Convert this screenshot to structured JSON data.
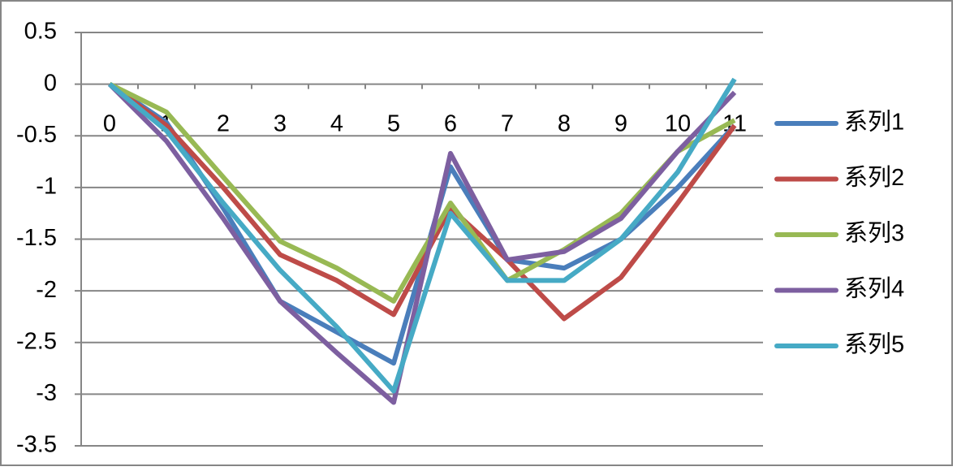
{
  "chart_data": {
    "type": "line",
    "categories": [
      "0",
      "1",
      "2",
      "3",
      "4",
      "5",
      "6",
      "7",
      "8",
      "9",
      "10",
      "11"
    ],
    "series": [
      {
        "name": "系列1",
        "color": "#4a7ebb",
        "values": [
          0,
          -0.37,
          -1.2,
          -2.1,
          -2.4,
          -2.7,
          -0.8,
          -1.7,
          -1.78,
          -1.5,
          -1.0,
          -0.4
        ]
      },
      {
        "name": "系列2",
        "color": "#be4b48",
        "values": [
          0,
          -0.4,
          -1.0,
          -1.65,
          -1.9,
          -2.23,
          -1.2,
          -1.7,
          -2.27,
          -1.87,
          -1.15,
          -0.4
        ]
      },
      {
        "name": "系列3",
        "color": "#98b954",
        "values": [
          0,
          -0.27,
          -0.9,
          -1.52,
          -1.78,
          -2.1,
          -1.15,
          -1.9,
          -1.6,
          -1.25,
          -0.65,
          -0.35
        ]
      },
      {
        "name": "系列4",
        "color": "#7d5fa0",
        "values": [
          0,
          -0.55,
          -1.3,
          -2.1,
          -2.6,
          -3.08,
          -0.67,
          -1.7,
          -1.62,
          -1.3,
          -0.65,
          -0.08
        ]
      },
      {
        "name": "系列5",
        "color": "#46aac5",
        "values": [
          0,
          -0.45,
          -1.15,
          -1.8,
          -2.35,
          -2.97,
          -1.25,
          -1.9,
          -1.9,
          -1.5,
          -0.85,
          0.05
        ]
      }
    ],
    "ylim": [
      -3.5,
      0.5
    ],
    "yticks": [
      -3.5,
      -3,
      -2.5,
      -2,
      -1.5,
      -1,
      -0.5,
      0,
      0.5
    ],
    "grid": true,
    "legend": "right"
  }
}
